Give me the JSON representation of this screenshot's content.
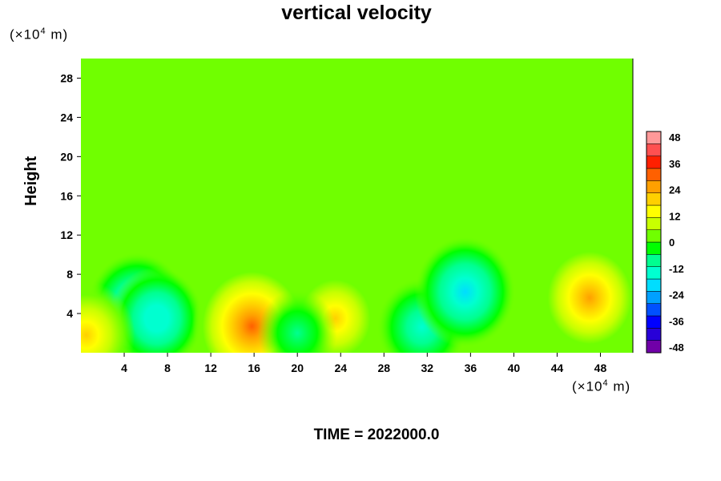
{
  "chart_data": {
    "type": "heatmap",
    "title": "vertical velocity",
    "ylabel": "Height",
    "x_unit": "(×10",
    "x_unit_exp": "4",
    "x_unit_tail": " m)",
    "y_unit": "(×10",
    "y_unit_exp": "4",
    "y_unit_tail": " m)",
    "x_ticks": [
      "4",
      "8",
      "12",
      "16",
      "20",
      "24",
      "28",
      "32",
      "36",
      "40",
      "44",
      "48"
    ],
    "y_ticks": [
      "4",
      "8",
      "12",
      "16",
      "20",
      "24",
      "28"
    ],
    "xlim": [
      0,
      51
    ],
    "ylim": [
      0,
      30
    ],
    "colorbar": {
      "ticks": [
        "48",
        "36",
        "24",
        "12",
        "0",
        "-12",
        "-24",
        "-36",
        "-48"
      ],
      "range": [
        -48,
        48
      ],
      "colors": [
        "#7000a8",
        "#2800d8",
        "#0000ff",
        "#0050ff",
        "#00a0ff",
        "#00ddff",
        "#00ffd0",
        "#00ff90",
        "#00ff00",
        "#70ff00",
        "#c8ff00",
        "#ffff00",
        "#ffd000",
        "#ffa000",
        "#ff6000",
        "#ff2000",
        "#ff5050",
        "#ff9999"
      ]
    },
    "background_value": 0,
    "features": [
      {
        "x": 5.2,
        "y": 4.6,
        "value": -20
      },
      {
        "x": 7,
        "y": 3.5,
        "value": -16
      },
      {
        "x": 15.8,
        "y": 2.7,
        "value": 30
      },
      {
        "x": 0.5,
        "y": 1.8,
        "value": 18
      },
      {
        "x": 23.5,
        "y": 3.5,
        "value": 16
      },
      {
        "x": 31.5,
        "y": 2.6,
        "value": -14
      },
      {
        "x": 35.5,
        "y": 6.2,
        "value": -20
      },
      {
        "x": 47,
        "y": 5.6,
        "value": 22
      },
      {
        "x": 20,
        "y": 2,
        "value": -8
      }
    ]
  },
  "footer": {
    "time_text": "TIME = 2022000.0"
  }
}
